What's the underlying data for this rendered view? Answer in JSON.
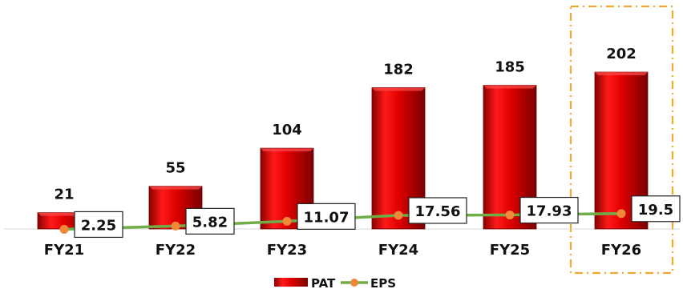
{
  "chart_data": {
    "type": "bar",
    "categories": [
      "FY21",
      "FY22",
      "FY23",
      "FY24",
      "FY25",
      "FY26"
    ],
    "series": [
      {
        "name": "PAT",
        "type": "bar",
        "values": [
          21,
          55,
          104,
          182,
          185,
          202
        ]
      },
      {
        "name": "EPS",
        "type": "line",
        "values": [
          2.25,
          5.82,
          11.07,
          17.56,
          17.93,
          19.5
        ]
      }
    ],
    "bar_labels": [
      "21",
      "55",
      "104",
      "182",
      "185",
      "202"
    ],
    "eps_labels": [
      "2.25",
      "5.82",
      "11.07",
      "17.56",
      "17.93",
      "19.5"
    ],
    "highlighted_category": "FY26",
    "legend": {
      "position": "bottom"
    },
    "colors": {
      "bar": "#e60000",
      "line": "#70ad47",
      "marker": "#f0883a",
      "highlight": "#f0a830"
    },
    "grid": false,
    "xlabel": "",
    "ylabel": ""
  }
}
